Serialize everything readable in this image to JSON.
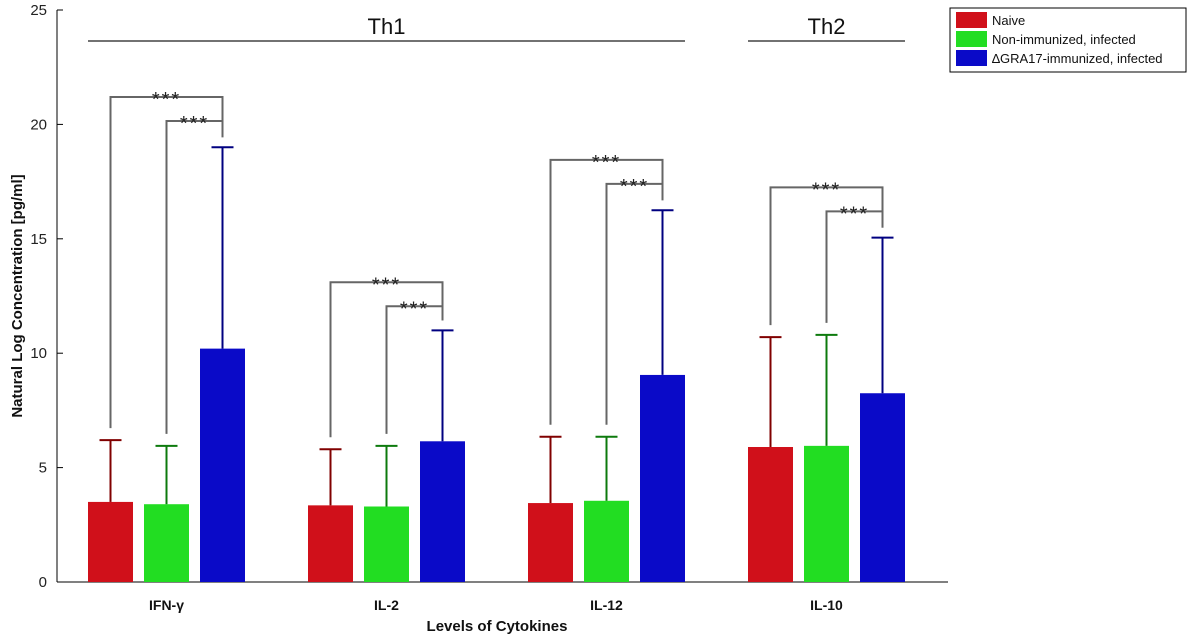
{
  "chart_data": {
    "type": "bar",
    "categories": [
      "IFN-γ",
      "IL-2",
      "IL-12",
      "IL-10"
    ],
    "series": [
      {
        "name": "Naive",
        "color": "#d0101a",
        "error_color": "#800000",
        "values": [
          3.5,
          3.35,
          3.45,
          5.9
        ],
        "error_upper": [
          6.2,
          5.8,
          6.35,
          10.7
        ]
      },
      {
        "name": "Non-immunized, infected",
        "color": "#22dd22",
        "error_color": "#0d7a0d",
        "values": [
          3.4,
          3.3,
          3.55,
          5.95
        ],
        "error_upper": [
          5.95,
          5.95,
          6.35,
          10.8
        ]
      },
      {
        "name": "∆GRA17-immunized, infected",
        "color": "#0a0ac8",
        "error_color": "#000080",
        "values": [
          10.2,
          6.15,
          9.05,
          8.25
        ],
        "error_upper": [
          19.0,
          11.0,
          16.25,
          15.05
        ]
      }
    ],
    "xlabel": "Levels of Cytokines",
    "ylabel": "Natural Log Concentration [pg/ml]",
    "ylim": [
      0,
      25
    ],
    "yticks": [
      0,
      5,
      10,
      15,
      20,
      25
    ],
    "legend_position": "top-right",
    "groups": [
      {
        "label": "Th1",
        "from_category": 0,
        "to_category": 2
      },
      {
        "label": "Th2",
        "from_category": 3,
        "to_category": 3
      }
    ],
    "significance": [
      {
        "category": 0,
        "from_series": 0,
        "to_series": 2,
        "label": "***",
        "y": 21.2
      },
      {
        "category": 0,
        "from_series": 1,
        "to_series": 2,
        "label": "***",
        "y": 20.15
      },
      {
        "category": 1,
        "from_series": 0,
        "to_series": 2,
        "label": "***",
        "y": 13.1
      },
      {
        "category": 1,
        "from_series": 1,
        "to_series": 2,
        "label": "***",
        "y": 12.05
      },
      {
        "category": 2,
        "from_series": 0,
        "to_series": 2,
        "label": "***",
        "y": 18.45
      },
      {
        "category": 2,
        "from_series": 1,
        "to_series": 2,
        "label": "***",
        "y": 17.4
      },
      {
        "category": 3,
        "from_series": 0,
        "to_series": 2,
        "label": "***",
        "y": 17.25
      },
      {
        "category": 3,
        "from_series": 1,
        "to_series": 2,
        "label": "***",
        "y": 16.2
      }
    ]
  }
}
